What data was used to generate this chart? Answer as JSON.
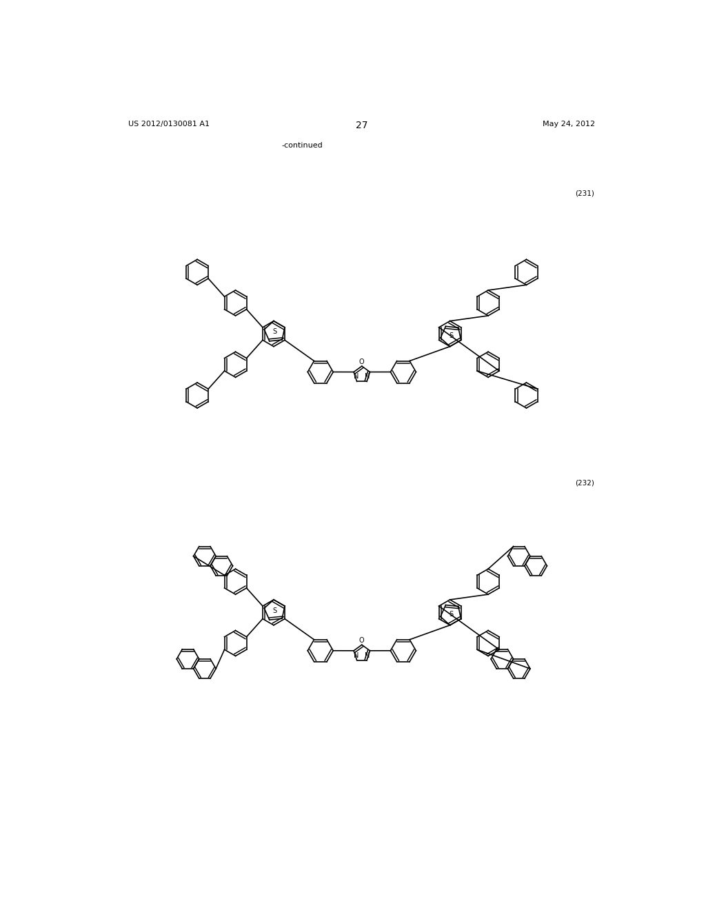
{
  "title_left": "US 2012/0130081 A1",
  "title_right": "May 24, 2012",
  "page_number": "27",
  "continued_text": "-continued",
  "compound_231": "(231)",
  "compound_232": "(232)",
  "background_color": "#ffffff",
  "fig_width": 10.24,
  "fig_height": 13.2
}
